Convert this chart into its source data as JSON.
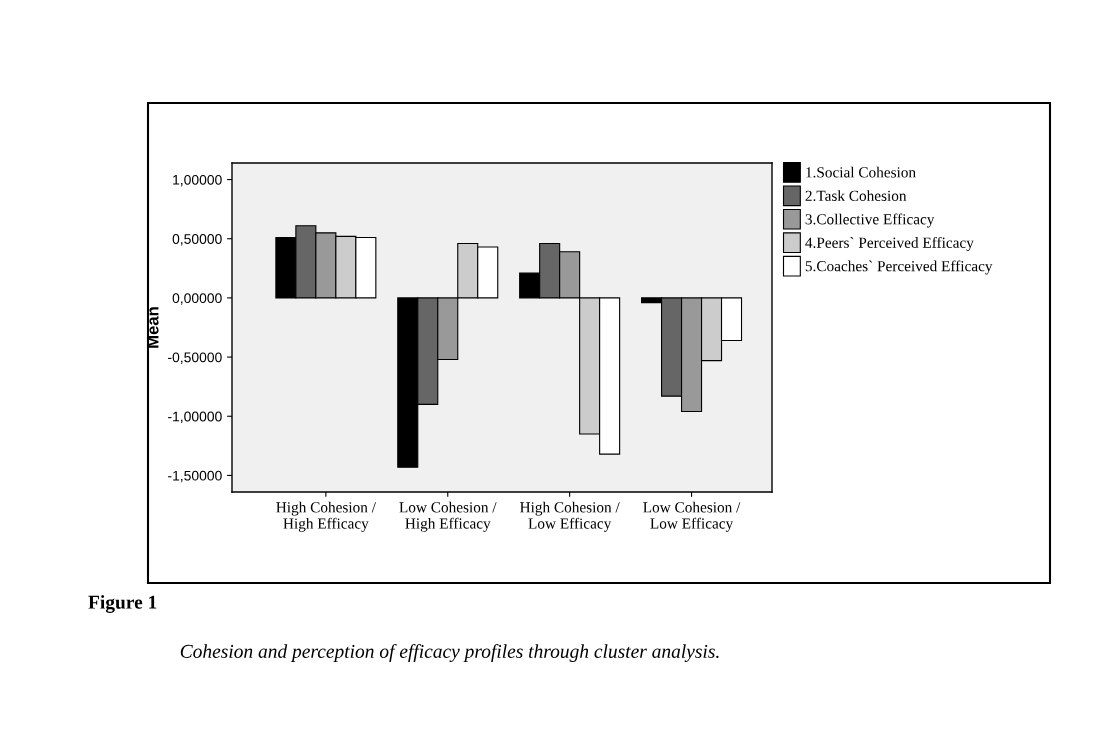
{
  "chart_data": {
    "type": "bar",
    "ylabel": "Mean",
    "categories": [
      "High Cohesion /\nHigh Efficacy",
      "Low Cohesion /\nHigh Efficacy",
      "High Cohesion /\nLow Efficacy",
      "Low Cohesion /\nLow Efficacy"
    ],
    "series": [
      {
        "name": "1.Social Cohesion",
        "color": "#000000",
        "values": [
          0.51,
          -1.43,
          0.21,
          -0.04
        ]
      },
      {
        "name": "2.Task Cohesion",
        "color": "#666666",
        "values": [
          0.61,
          -0.9,
          0.46,
          -0.83
        ]
      },
      {
        "name": "3.Collective Efficacy",
        "color": "#999999",
        "values": [
          0.55,
          -0.52,
          0.39,
          -0.96
        ]
      },
      {
        "name": "4.Peers` Perceived Efficacy",
        "color": "#cccccc",
        "values": [
          0.52,
          0.46,
          -1.15,
          -0.53
        ]
      },
      {
        "name": "5.Coaches` Perceived Efficacy",
        "color": "#ffffff",
        "values": [
          0.51,
          0.43,
          -1.32,
          -0.36
        ]
      }
    ],
    "ylim": [
      -1.64,
      1.14
    ],
    "yticks": [
      {
        "value": -1.5,
        "label": "-1,50000"
      },
      {
        "value": -1.0,
        "label": "-1,00000"
      },
      {
        "value": -0.5,
        "label": "-0,50000"
      },
      {
        "value": 0,
        "label": "0,00000"
      },
      {
        "value": 0.5,
        "label": "0,50000"
      },
      {
        "value": 1.0,
        "label": "1,00000"
      }
    ],
    "grid": false,
    "legend": "top right",
    "annotations": [
      "Figure 1",
      "Cohesion and perception of efficacy profiles through cluster analysis."
    ]
  }
}
